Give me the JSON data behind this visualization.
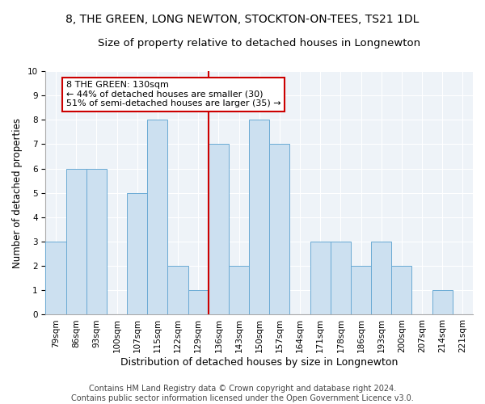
{
  "title": "8, THE GREEN, LONG NEWTON, STOCKTON-ON-TEES, TS21 1DL",
  "subtitle": "Size of property relative to detached houses in Longnewton",
  "xlabel": "Distribution of detached houses by size in Longnewton",
  "ylabel": "Number of detached properties",
  "bar_labels": [
    "79sqm",
    "86sqm",
    "93sqm",
    "100sqm",
    "107sqm",
    "115sqm",
    "122sqm",
    "129sqm",
    "136sqm",
    "143sqm",
    "150sqm",
    "157sqm",
    "164sqm",
    "171sqm",
    "178sqm",
    "186sqm",
    "193sqm",
    "200sqm",
    "207sqm",
    "214sqm",
    "221sqm"
  ],
  "bar_values": [
    3,
    6,
    6,
    0,
    5,
    8,
    2,
    1,
    7,
    2,
    8,
    7,
    0,
    3,
    3,
    2,
    3,
    2,
    0,
    1,
    0
  ],
  "bar_color": "#cce0f0",
  "bar_edgecolor": "#6aaad4",
  "ref_line_color": "#cc0000",
  "annotation_text": "8 THE GREEN: 130sqm\n← 44% of detached houses are smaller (30)\n51% of semi-detached houses are larger (35) →",
  "annotation_box_color": "#ffffff",
  "annotation_box_edgecolor": "#cc0000",
  "ylim": [
    0,
    10
  ],
  "yticks": [
    0,
    1,
    2,
    3,
    4,
    5,
    6,
    7,
    8,
    9,
    10
  ],
  "footer": "Contains HM Land Registry data © Crown copyright and database right 2024.\nContains public sector information licensed under the Open Government Licence v3.0.",
  "bg_color": "#ffffff",
  "plot_bg_color": "#eef3f8",
  "title_fontsize": 10,
  "subtitle_fontsize": 9.5,
  "xlabel_fontsize": 9,
  "ylabel_fontsize": 8.5,
  "tick_fontsize": 7.5,
  "annotation_fontsize": 8,
  "footer_fontsize": 7
}
